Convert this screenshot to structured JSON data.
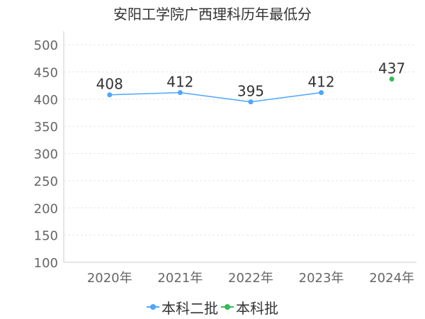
{
  "chart_data": {
    "type": "line",
    "title": "安阳工学院广西理科历年最低分",
    "categories": [
      "2020年",
      "2021年",
      "2022年",
      "2023年",
      "2024年"
    ],
    "series": [
      {
        "name": "本科二批",
        "color": "#4da6ff",
        "values": [
          408,
          412,
          395,
          412,
          null
        ]
      },
      {
        "name": "本科批",
        "color": "#33bb55",
        "values": [
          null,
          null,
          null,
          null,
          437
        ]
      }
    ],
    "ylim": [
      100,
      500
    ],
    "yticks": [
      100,
      150,
      200,
      250,
      300,
      350,
      400,
      450,
      500
    ],
    "grid": true,
    "legend_position": "bottom"
  }
}
